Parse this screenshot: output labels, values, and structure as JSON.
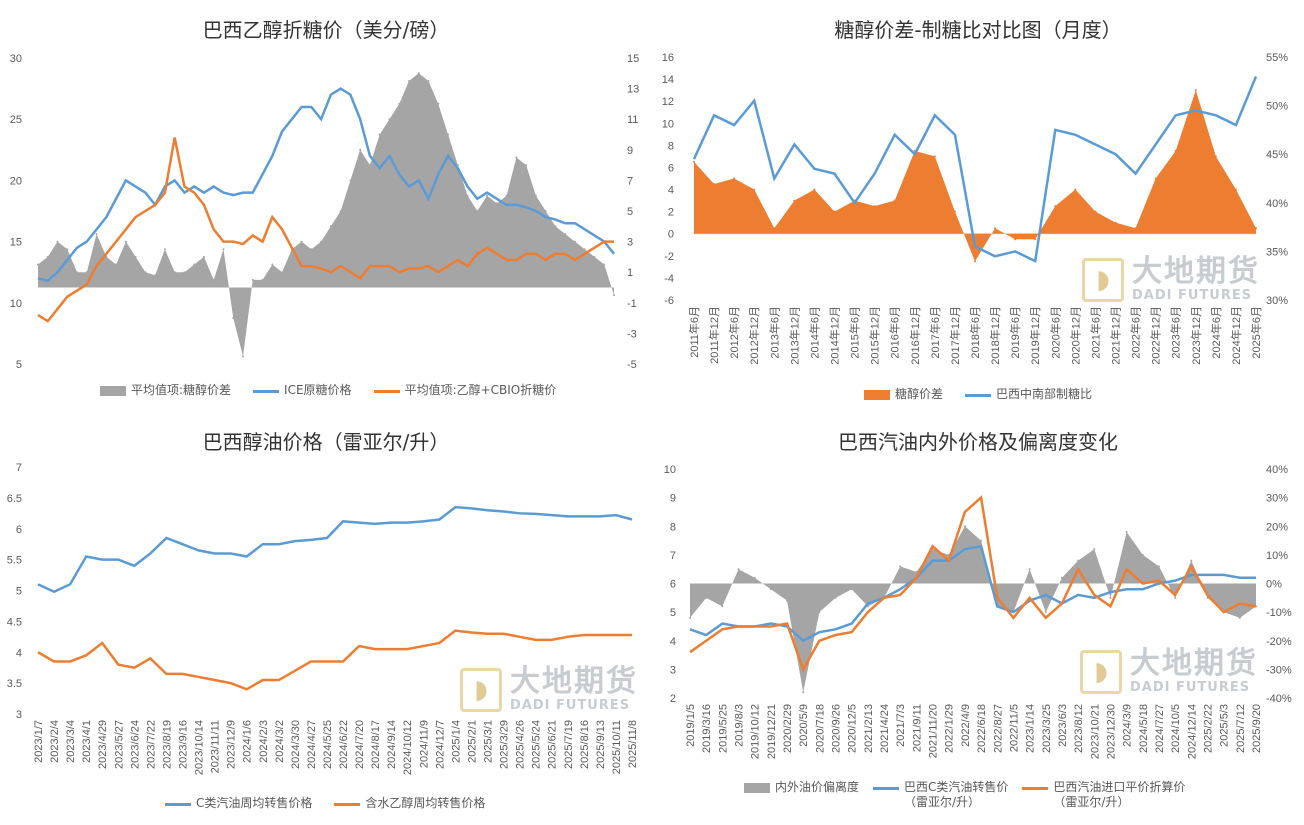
{
  "colors": {
    "grey": "#A5A5A5",
    "blue": "#5B9BD5",
    "orange": "#ED7D31"
  },
  "watermark": {
    "cn": "大地期货",
    "en": "DADI FUTURES",
    "icon": "dadi-logo-icon"
  },
  "chart_data": [
    {
      "type": "area+line",
      "title": "巴西乙醇折糖价（美分/磅）",
      "ylim_left": [
        5,
        30
      ],
      "left_ticks": [
        "30",
        "25",
        "20",
        "15",
        "10",
        "5"
      ],
      "ylim_right": [
        -5,
        15
      ],
      "right_ticks": [
        "15",
        "13",
        "11",
        "9",
        "7",
        "5",
        "3",
        "1",
        "-1",
        "-3",
        "-5"
      ],
      "legend": [
        "平均值项:糖醇价差",
        "ICE原糖价格",
        "平均值项:乙醇+CBIO折糖价"
      ],
      "x_count": 60,
      "series": [
        {
          "name": "平均值项:糖醇价差",
          "axis": "right",
          "values": [
            1.5,
            2.0,
            3.0,
            2.5,
            1.0,
            1.0,
            3.5,
            2.0,
            1.5,
            3.0,
            2.0,
            1.0,
            0.8,
            2.5,
            1.0,
            1.0,
            1.5,
            2.0,
            0.5,
            2.5,
            -2.0,
            -4.5,
            0.5,
            0.5,
            1.5,
            1.0,
            2.5,
            3.0,
            2.5,
            3.0,
            4.0,
            5.0,
            7.0,
            9.0,
            8.0,
            10.0,
            11.0,
            12.0,
            13.5,
            14.0,
            13.5,
            12.0,
            10.0,
            8.0,
            6.0,
            5.0,
            6.0,
            5.5,
            6.0,
            8.5,
            8.0,
            6.0,
            5.0,
            4.0,
            3.5,
            3.0,
            2.5,
            2.0,
            1.5,
            -0.5
          ]
        },
        {
          "name": "ICE原糖价格",
          "axis": "left",
          "values": [
            12.0,
            11.8,
            12.5,
            13.5,
            14.5,
            15.0,
            16.0,
            17.0,
            18.5,
            20.0,
            19.5,
            19.0,
            18.0,
            19.5,
            20.0,
            19.0,
            19.5,
            19.0,
            19.5,
            19.0,
            18.8,
            19.0,
            19.0,
            20.5,
            22.0,
            24.0,
            25.0,
            26.0,
            26.0,
            25.0,
            27.0,
            27.5,
            27.0,
            25.0,
            22.0,
            21.0,
            22.0,
            20.5,
            19.5,
            20.0,
            18.5,
            20.5,
            22.0,
            21.0,
            19.5,
            18.5,
            19.0,
            18.5,
            18.0,
            18.0,
            17.8,
            17.5,
            17.0,
            16.8,
            16.5,
            16.5,
            16.0,
            15.5,
            15.0,
            14.0
          ]
        },
        {
          "name": "平均值项:乙醇+CBIO折糖价",
          "axis": "left",
          "values": [
            9.0,
            8.5,
            9.5,
            10.5,
            11.0,
            11.5,
            13.0,
            14.0,
            15.0,
            16.0,
            17.0,
            17.5,
            18.0,
            19.0,
            23.5,
            19.5,
            19.0,
            18.0,
            16.0,
            15.0,
            15.0,
            14.8,
            15.5,
            15.0,
            17.0,
            16.0,
            14.5,
            13.0,
            13.0,
            12.8,
            12.5,
            13.0,
            12.5,
            12.0,
            13.0,
            13.0,
            13.0,
            12.5,
            12.8,
            12.8,
            13.0,
            12.5,
            13.0,
            13.5,
            13.0,
            14.0,
            14.5,
            14.0,
            13.5,
            13.5,
            14.0,
            14.0,
            13.5,
            14.0,
            14.0,
            13.5,
            14.0,
            14.5,
            15.0,
            15.0
          ]
        }
      ]
    },
    {
      "type": "area+line",
      "title": "糖醇价差-制糖比对比图（月度）",
      "ylim_left": [
        -6,
        16
      ],
      "left_ticks": [
        "16",
        "14",
        "12",
        "10",
        "8",
        "6",
        "4",
        "2",
        "0",
        "-2",
        "-4",
        "-6"
      ],
      "ylim_right": [
        30,
        55
      ],
      "right_ticks": [
        "55%",
        "50%",
        "45%",
        "40%",
        "35%",
        "30%"
      ],
      "categories": [
        "2011年6月",
        "2011年12月",
        "2012年6月",
        "2012年12月",
        "2013年6月",
        "2013年12月",
        "2014年6月",
        "2014年12月",
        "2015年6月",
        "2015年12月",
        "2016年6月",
        "2016年12月",
        "2017年6月",
        "2017年12月",
        "2018年6月",
        "2018年12月",
        "2019年6月",
        "2019年12月",
        "2020年6月",
        "2020年12月",
        "2021年6月",
        "2021年12月",
        "2022年6月",
        "2022年12月",
        "2023年6月",
        "2023年12月",
        "2024年6月",
        "2024年12月",
        "2025年6月"
      ],
      "legend": [
        "糖醇价差",
        "巴西中南部制糖比"
      ],
      "series": [
        {
          "name": "糖醇价差",
          "axis": "left",
          "values": [
            6.5,
            4.5,
            5.0,
            4.0,
            0.5,
            3.0,
            4.0,
            2.0,
            3.0,
            2.5,
            3.0,
            7.5,
            7.0,
            2.0,
            -2.5,
            0.5,
            -0.5,
            -0.5,
            2.5,
            4.0,
            2.0,
            1.0,
            0.5,
            5.0,
            7.5,
            13.0,
            7.0,
            4.0,
            0.5
          ]
        },
        {
          "name": "巴西中南部制糖比",
          "axis": "right",
          "values": [
            44.5,
            49.0,
            48.0,
            50.5,
            42.5,
            46.0,
            43.5,
            43.0,
            40.0,
            43.0,
            47.0,
            45.0,
            49.0,
            47.0,
            35.5,
            34.5,
            35.0,
            34.0,
            47.5,
            47.0,
            46.0,
            45.0,
            43.0,
            46.0,
            49.0,
            49.5,
            49.0,
            48.0,
            53.0
          ]
        }
      ]
    },
    {
      "type": "line",
      "title": "巴西醇油价格（雷亚尔/升）",
      "ylim": [
        3,
        7
      ],
      "y_ticks": [
        "7",
        "6.5",
        "6",
        "5.5",
        "5",
        "4.5",
        "4",
        "3.5",
        "3"
      ],
      "categories": [
        "2023/1/7",
        "2023/2/4",
        "2023/3/4",
        "2023/4/1",
        "2023/4/29",
        "2023/5/27",
        "2023/6/24",
        "2023/7/22",
        "2023/8/19",
        "2023/9/16",
        "2023/10/14",
        "2023/11/11",
        "2023/12/9",
        "2024/1/6",
        "2024/2/3",
        "2024/3/2",
        "2024/3/30",
        "2024/4/27",
        "2024/5/25",
        "2024/6/22",
        "2024/7/20",
        "2024/8/17",
        "2024/9/14",
        "2024/10/12",
        "2024/11/9",
        "2024/12/7",
        "2025/1/4",
        "2025/2/1",
        "2025/3/1",
        "2025/3/29",
        "2025/4/26",
        "2025/5/24",
        "2025/6/21",
        "2025/7/19",
        "2025/8/16",
        "2025/9/13",
        "2025/10/11",
        "2025/11/8"
      ],
      "legend": [
        "C类汽油周均转售价格",
        "含水乙醇周均转售价格"
      ],
      "series": [
        {
          "name": "C类汽油周均转售价格",
          "values": [
            5.1,
            4.98,
            5.1,
            5.55,
            5.5,
            5.5,
            5.4,
            5.6,
            5.85,
            5.75,
            5.65,
            5.6,
            5.6,
            5.55,
            5.75,
            5.75,
            5.8,
            5.82,
            5.85,
            6.12,
            6.1,
            6.08,
            6.1,
            6.1,
            6.12,
            6.15,
            6.35,
            6.33,
            6.3,
            6.28,
            6.25,
            6.24,
            6.22,
            6.2,
            6.2,
            6.2,
            6.22,
            6.15
          ]
        },
        {
          "name": "含水乙醇周均转售价格",
          "values": [
            4.0,
            3.85,
            3.85,
            3.95,
            4.15,
            3.8,
            3.75,
            3.9,
            3.65,
            3.65,
            3.6,
            3.55,
            3.5,
            3.4,
            3.55,
            3.55,
            3.7,
            3.85,
            3.85,
            3.85,
            4.1,
            4.05,
            4.05,
            4.05,
            4.1,
            4.15,
            4.35,
            4.32,
            4.3,
            4.3,
            4.25,
            4.2,
            4.2,
            4.25,
            4.28,
            4.28,
            4.28,
            4.28
          ]
        }
      ]
    },
    {
      "type": "area+line",
      "title": "巴西汽油内外价格及偏离度变化",
      "ylim_left": [
        2,
        10
      ],
      "left_ticks": [
        "10",
        "9",
        "8",
        "7",
        "6",
        "5",
        "4",
        "3",
        "2"
      ],
      "ylim_right": [
        -40,
        40
      ],
      "right_ticks": [
        "40%",
        "30%",
        "20%",
        "10%",
        "0%",
        "-10%",
        "-20%",
        "-30%",
        "-40%"
      ],
      "categories": [
        "2019/1/5",
        "2019/3/16",
        "2019/5/25",
        "2019/8/3",
        "2019/10/12",
        "2019/12/21",
        "2020/2/29",
        "2020/5/9",
        "2020/7/18",
        "2020/9/26",
        "2020/12/5",
        "2021/2/13",
        "2021/4/24",
        "2021/7/3",
        "2021/9/11",
        "2021/11/20",
        "2022/1/29",
        "2022/4/9",
        "2022/6/18",
        "2022/8/27",
        "2022/11/5",
        "2023/1/14",
        "2023/3/25",
        "2023/6/3",
        "2023/8/12",
        "2023/10/21",
        "2023/12/30",
        "2024/3/9",
        "2024/5/18",
        "2024/7/27",
        "2024/10/5",
        "2024/12/14",
        "2025/2/22",
        "2025/5/3",
        "2025/7/12",
        "2025/9/20"
      ],
      "legend": [
        "内外油价偏离度",
        "巴西C类汽油转售价\n（雷亚尔/升）",
        "巴西汽油进口平价折算价\n（雷亚尔/升）"
      ],
      "series": [
        {
          "name": "内外油价偏离度",
          "axis": "right",
          "values": [
            -12,
            -5,
            -8,
            5,
            2,
            -2,
            -6,
            -38,
            -10,
            -5,
            -2,
            -8,
            -5,
            6,
            4,
            12,
            10,
            20,
            15,
            -8,
            -10,
            5,
            -10,
            2,
            8,
            12,
            -5,
            18,
            10,
            6,
            -5,
            8,
            -5,
            -10,
            -12,
            -8
          ]
        },
        {
          "name": "巴西C类汽油转售价",
          "axis": "left",
          "values": [
            4.4,
            4.2,
            4.6,
            4.5,
            4.5,
            4.6,
            4.5,
            4.0,
            4.3,
            4.4,
            4.6,
            5.3,
            5.5,
            5.8,
            6.2,
            6.8,
            6.8,
            7.2,
            7.3,
            5.2,
            5.0,
            5.4,
            5.6,
            5.3,
            5.6,
            5.5,
            5.7,
            5.8,
            5.8,
            6.0,
            6.1,
            6.3,
            6.3,
            6.3,
            6.2,
            6.2
          ]
        },
        {
          "name": "巴西汽油进口平价折算价",
          "axis": "left",
          "values": [
            3.6,
            4.0,
            4.4,
            4.5,
            4.5,
            4.5,
            4.6,
            3.0,
            4.0,
            4.2,
            4.3,
            5.0,
            5.5,
            5.6,
            6.2,
            7.3,
            6.8,
            8.5,
            9.0,
            5.5,
            4.8,
            5.5,
            4.8,
            5.3,
            6.5,
            5.6,
            5.2,
            6.5,
            6.0,
            6.1,
            5.6,
            6.6,
            5.6,
            5.0,
            5.3,
            5.2
          ]
        }
      ]
    }
  ]
}
